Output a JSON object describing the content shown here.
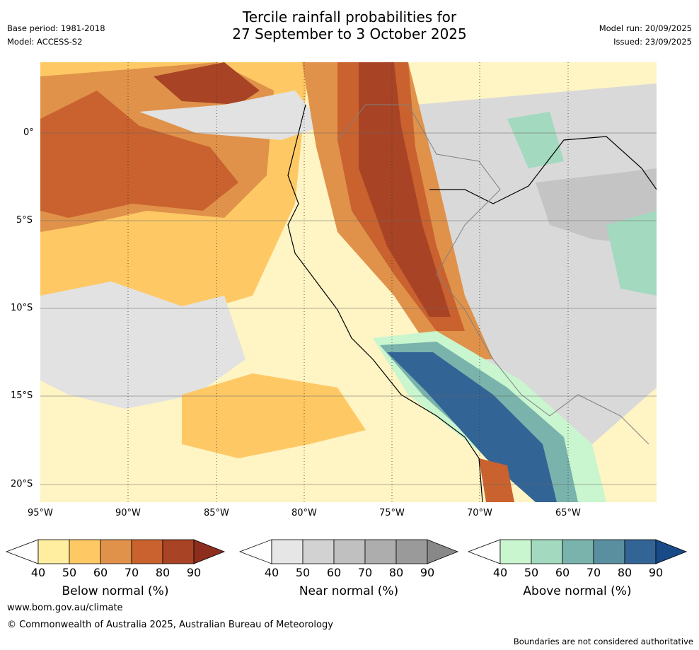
{
  "header": {
    "title_line1": "Tercile rainfall probabilities for",
    "title_line2": "27 September to 3 October 2025",
    "base_period": "Base period: 1981-2018",
    "model": "Model: ACCESS-S2",
    "model_run": "Model run: 20/09/2025",
    "issued": "Issued: 23/09/2025"
  },
  "map": {
    "lat_labels": [
      "0°",
      "5°S",
      "10°S",
      "15°S",
      "20°S"
    ],
    "lon_labels": [
      "95°W",
      "90°W",
      "85°W",
      "80°W",
      "75°W",
      "70°W",
      "65°W"
    ],
    "colors": {
      "below": [
        "#ffeda0",
        "#fec965",
        "#e0924a",
        "#c9622f",
        "#a84425",
        "#8c2d1e"
      ],
      "near": [
        "#e6e6e6",
        "#d2d2d2",
        "#c0c0c0",
        "#adadad",
        "#9a9a9a",
        "#888888"
      ],
      "above": [
        "#c9f5cf",
        "#a2d9bf",
        "#79b3ac",
        "#5a8fa0",
        "#336496",
        "#174a86"
      ]
    }
  },
  "legends": [
    {
      "label": "Below normal (%)",
      "ticks": [
        "40",
        "50",
        "60",
        "70",
        "80",
        "90"
      ]
    },
    {
      "label": "Near normal (%)",
      "ticks": [
        "40",
        "50",
        "60",
        "70",
        "80",
        "90"
      ]
    },
    {
      "label": "Above normal (%)",
      "ticks": [
        "40",
        "50",
        "60",
        "70",
        "80",
        "90"
      ]
    }
  ],
  "footer": {
    "url": "www.bom.gov.au/climate",
    "copyright": "© Commonwealth of Australia 2025, Australian Bureau of Meteorology",
    "disclaimer": "Boundaries are not considered authoritative"
  }
}
